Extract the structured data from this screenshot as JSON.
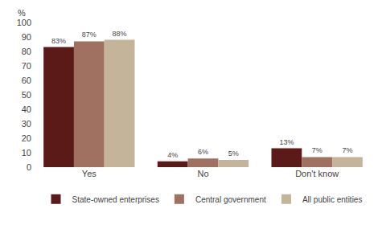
{
  "chart_data": {
    "type": "bar",
    "ylabel": "%",
    "categories": [
      "Yes",
      "No",
      "Don't know"
    ],
    "series": [
      {
        "name": "State-owned enterprises",
        "color": "#5B1A18",
        "values": [
          83,
          4,
          13
        ],
        "value_labels": [
          "83%",
          "4%",
          "13%"
        ]
      },
      {
        "name": "Central government",
        "color": "#A07060",
        "values": [
          87,
          6,
          7
        ],
        "value_labels": [
          "87%",
          "6%",
          "7%"
        ]
      },
      {
        "name": "All public entities",
        "color": "#C4B49A",
        "values": [
          88,
          5,
          7
        ],
        "value_labels": [
          "88%",
          "5%",
          "7%"
        ]
      }
    ],
    "ylim": [
      0,
      100
    ],
    "yticks": [
      0,
      10,
      20,
      30,
      40,
      50,
      60,
      70,
      80,
      90,
      100
    ],
    "grid": false,
    "data_labels": true,
    "legend": "bottom"
  }
}
